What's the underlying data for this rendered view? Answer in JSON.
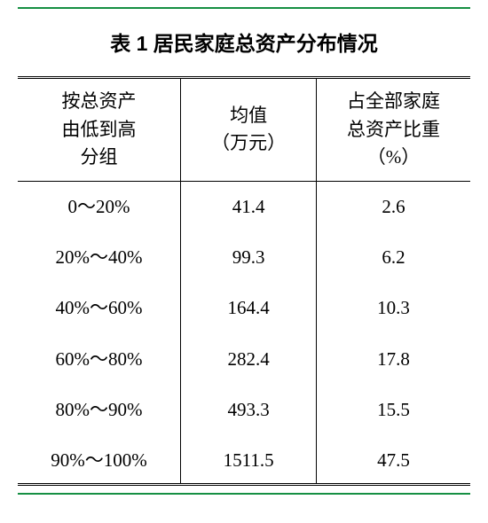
{
  "title": "表 1  居民家庭总资产分布情况",
  "table": {
    "type": "table",
    "columns": [
      {
        "lines": [
          "按总资产",
          "由低到高",
          "分组"
        ],
        "width_pct": 36
      },
      {
        "lines": [
          "均值",
          "（万元）"
        ],
        "width_pct": 30
      },
      {
        "lines": [
          "占全部家庭",
          "总资产比重",
          "（%）"
        ],
        "width_pct": 34
      }
    ],
    "rows": [
      [
        "0～20%",
        "41.4",
        "2.6"
      ],
      [
        "20%～40%",
        "99.3",
        "6.2"
      ],
      [
        "40%～60%",
        "164.4",
        "10.3"
      ],
      [
        "60%～80%",
        "282.4",
        "17.8"
      ],
      [
        "80%～90%",
        "493.3",
        "15.5"
      ],
      [
        "90%～100%",
        "1511.5",
        "47.5"
      ]
    ],
    "styling": {
      "title_fontsize": 23,
      "title_fontweight": "bold",
      "body_fontsize": 21,
      "text_color": "#000000",
      "background_color": "#ffffff",
      "outer_border_color": "#168f43",
      "outer_border_width": 2,
      "table_rule_color": "#000000",
      "header_top_rule": "double",
      "header_bottom_rule": "solid",
      "bottom_rule": "double",
      "column_divider_width": 1.5,
      "row_padding_v": 14
    }
  }
}
